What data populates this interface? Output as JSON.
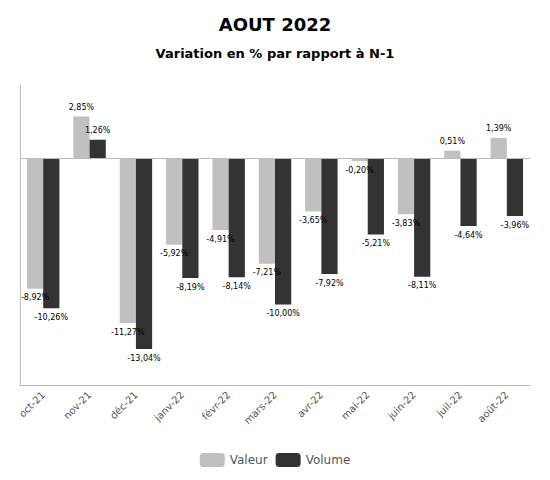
{
  "chart_data": {
    "type": "bar",
    "title": "AOUT 2022",
    "subtitle": "Variation en % par rapport à N-1",
    "categories": [
      "oct-21",
      "nov-21",
      "déc-21",
      "janv-22",
      "févr-22",
      "mars-22",
      "avr-22",
      "mai-22",
      "juin-22",
      "juil-22",
      "août-22"
    ],
    "series": [
      {
        "name": "Valeur",
        "color": "#c0c0c0",
        "values": [
          -8.92,
          2.85,
          -11.27,
          -5.92,
          -4.91,
          -7.21,
          -3.65,
          -0.2,
          -3.83,
          0.51,
          1.39
        ],
        "value_labels": [
          "-8,92%",
          "2,85%",
          "-11,27%",
          "-5,92%",
          "-4,91%",
          "-7,21%",
          "-3,65%",
          "-0,20%",
          "-3,83%",
          "0,51%",
          "1,39%"
        ]
      },
      {
        "name": "Volume",
        "color": "#333333",
        "values": [
          -10.26,
          1.26,
          -13.04,
          -8.19,
          -8.14,
          -10.0,
          -7.92,
          -5.21,
          -8.11,
          -4.64,
          -3.96
        ],
        "value_labels": [
          "-10,26%",
          "1,26%",
          "-13,04%",
          "-8,19%",
          "-8,14%",
          "-10,00%",
          "-7,92%",
          "-5,21%",
          "-8,11%",
          "-4,64%",
          "-3,96%"
        ]
      }
    ],
    "ylim": [
      -15.5,
      5.0
    ],
    "grid": false,
    "legend": "bottom",
    "data_labels": true,
    "tick_labels": "x"
  }
}
